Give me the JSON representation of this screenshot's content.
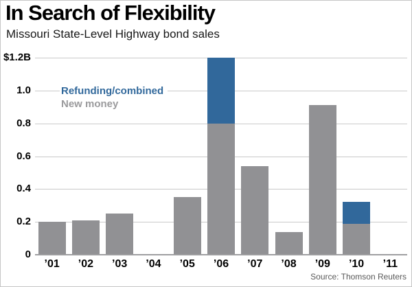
{
  "header": {
    "title": "In Search of Flexibility",
    "subtitle": "Missouri State-Level Highway bond sales"
  },
  "legend": {
    "refunding_label": "Refunding/combined",
    "new_money_label": "New money"
  },
  "source": "Source: Thomson Reuters",
  "colors": {
    "refunding_blue": "#31689b",
    "new_money_gray": "#919194",
    "legend_gray_text": "#9a9a9c",
    "gridline": "#c9c9c9",
    "baseline": "#9e9ea0",
    "source_text": "#595959"
  },
  "chart_data": {
    "type": "bar",
    "stacked": true,
    "title": "In Search of Flexibility",
    "subtitle": "Missouri State-Level Highway bond sales",
    "xlabel": "",
    "ylabel": "",
    "unit": "billions USD",
    "categories": [
      "’01",
      "’02",
      "’03",
      "’04",
      "’05",
      "’06",
      "’07",
      "’08",
      "’09",
      "’10",
      "’11"
    ],
    "series": [
      {
        "name": "New money",
        "color_key": "new_money_gray",
        "values": [
          0.2,
          0.21,
          0.25,
          0,
          0.35,
          0.8,
          0.54,
          0.14,
          0.91,
          0.19,
          0
        ]
      },
      {
        "name": "Refunding/combined",
        "color_key": "refunding_blue",
        "values": [
          0,
          0,
          0,
          0,
          0,
          0.4,
          0,
          0,
          0,
          0.13,
          0
        ]
      }
    ],
    "ylim": [
      0,
      1.2
    ],
    "y_ticks": [
      {
        "value": 1.2,
        "label": "$1.2B"
      },
      {
        "value": 1.0,
        "label": "1.0"
      },
      {
        "value": 0.8,
        "label": "0.8"
      },
      {
        "value": 0.6,
        "label": "0.6"
      },
      {
        "value": 0.4,
        "label": "0.4"
      },
      {
        "value": 0.2,
        "label": "0.2"
      },
      {
        "value": 0.0,
        "label": "0"
      }
    ],
    "grid": true,
    "legend_position": "upper-left-inside"
  }
}
